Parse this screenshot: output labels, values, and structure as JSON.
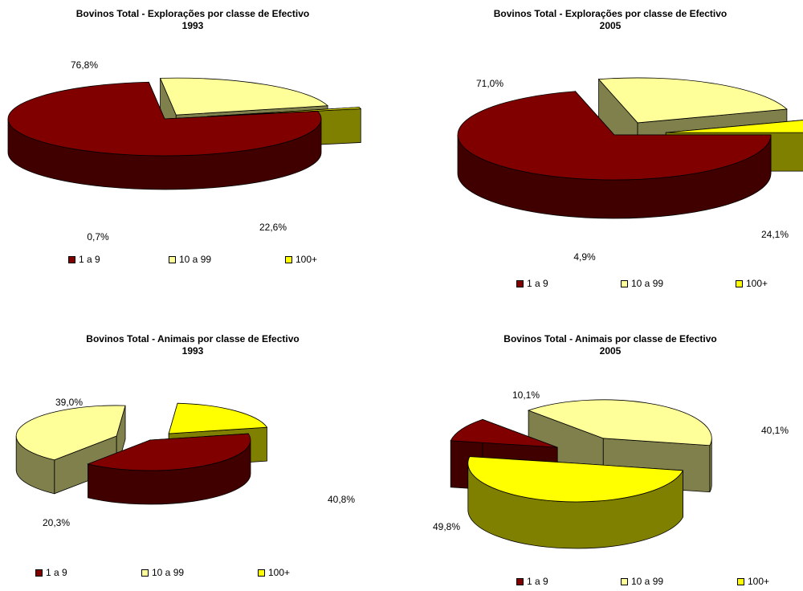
{
  "chart_data": [
    {
      "type": "pie",
      "title": "Bovinos Total - Explorações por classe de Efectivo",
      "subtitle": "1993",
      "categories": [
        "1 a 9",
        "10 a 99",
        "100+"
      ],
      "values": [
        76.8,
        22.6,
        0.7
      ],
      "data_labels": [
        "76,8%",
        "22,6%",
        "0,7%"
      ],
      "colors": [
        "#800000",
        "#FFFF99",
        "#FFFF00"
      ],
      "legend": "bottom"
    },
    {
      "type": "pie",
      "title": "Bovinos Total - Explorações por classe de Efectivo",
      "subtitle": "2005",
      "categories": [
        "1 a 9",
        "10 a 99",
        "100+"
      ],
      "values": [
        71.0,
        24.1,
        4.9
      ],
      "data_labels": [
        "71,0%",
        "24,1%",
        "4,9%"
      ],
      "colors": [
        "#800000",
        "#FFFF99",
        "#FFFF00"
      ],
      "legend": "bottom"
    },
    {
      "type": "pie",
      "title": "Bovinos Total - Animais por classe de Efectivo",
      "subtitle": "1993",
      "categories": [
        "1 a 9",
        "10 a 99",
        "100+"
      ],
      "values": [
        39.0,
        40.8,
        20.3
      ],
      "data_labels": [
        "39,0%",
        "40,8%",
        "20,3%"
      ],
      "colors": [
        "#800000",
        "#FFFF99",
        "#FFFF00"
      ],
      "legend": "bottom"
    },
    {
      "type": "pie",
      "title": "Bovinos Total - Animais por classe de Efectivo",
      "subtitle": "2005",
      "categories": [
        "1 a 9",
        "10 a 99",
        "100+"
      ],
      "values": [
        10.1,
        40.1,
        49.8
      ],
      "data_labels": [
        "10,1%",
        "40,1%",
        "49,8%"
      ],
      "colors": [
        "#800000",
        "#FFFF99",
        "#FFFF00"
      ],
      "legend": "bottom"
    }
  ]
}
